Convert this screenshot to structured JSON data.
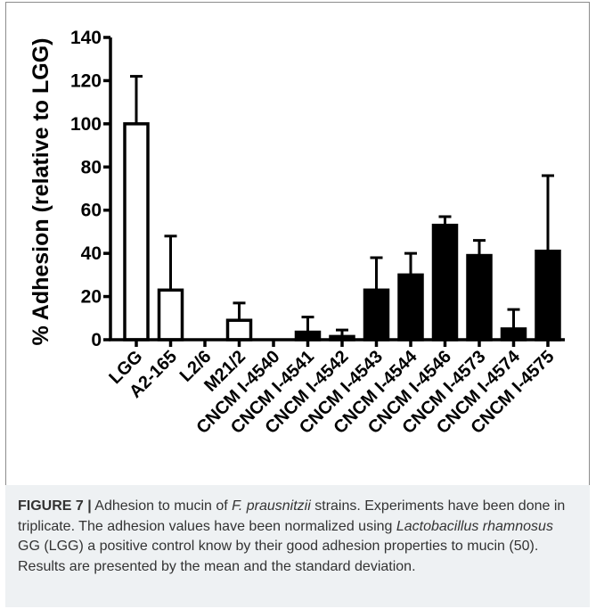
{
  "chart_data": {
    "type": "bar",
    "ylabel": "% Adhesion (relative to LGG)",
    "ylim": [
      0,
      140
    ],
    "yticks": [
      0,
      20,
      40,
      60,
      80,
      100,
      120,
      140
    ],
    "grid": false,
    "categories": [
      "LGG",
      "A2-165",
      "L2/6",
      "M21/2",
      "CNCM I-4540",
      "CNCM I-4541",
      "CNCM I-4542",
      "CNCM I-4543",
      "CNCM I-4544",
      "CNCM I-4546",
      "CNCM I-4573",
      "CNCM I-4574",
      "CNCM I-4575"
    ],
    "values": [
      100,
      23,
      0,
      9,
      0,
      3.5,
      1.5,
      23,
      30,
      53,
      39,
      5,
      41
    ],
    "errors": [
      22,
      25,
      0,
      8,
      0,
      7,
      3,
      15,
      10,
      4,
      7,
      9,
      35
    ],
    "fill": [
      "white",
      "white",
      "white",
      "white",
      "white",
      "black",
      "black",
      "black",
      "black",
      "black",
      "black",
      "black",
      "black"
    ],
    "colors": {
      "filled": "#000000",
      "open": "#ffffff",
      "stroke": "#000000"
    }
  },
  "caption": {
    "figure_label": "FIGURE 7 |",
    "text_1": " Adhesion to mucin of ",
    "species_1": "F. prausnitzii",
    "text_2": " strains. Experiments have been done in triplicate. The adhesion values have been normalized using ",
    "species_2": "Lactobacillus rhamnosus",
    "text_3": " GG (LGG) a positive control know by their good adhesion properties to mucin (50). Results are presented by the mean and the standard deviation."
  }
}
